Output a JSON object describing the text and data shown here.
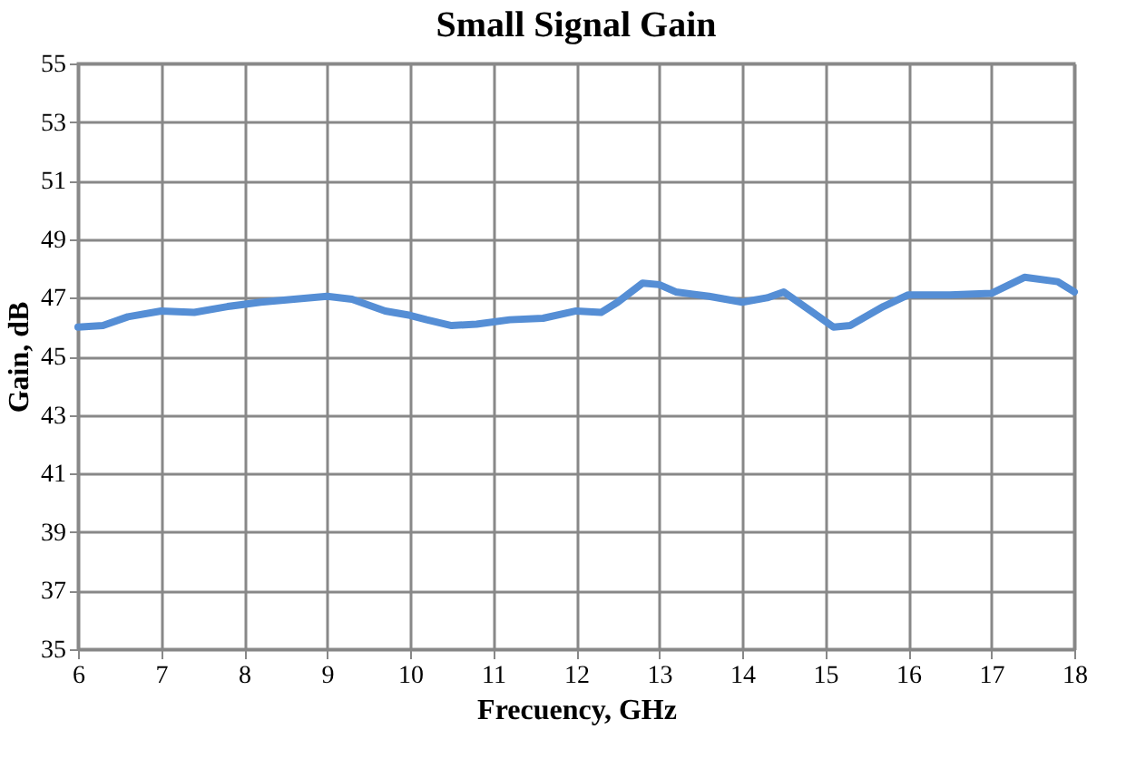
{
  "chart_data": {
    "type": "line",
    "title": "Small Signal Gain",
    "xlabel": "Frecuency, GHz",
    "ylabel": "Gain, dB",
    "x": [
      6.0,
      6.3,
      6.6,
      7.0,
      7.4,
      7.8,
      8.2,
      8.6,
      9.0,
      9.3,
      9.7,
      10.0,
      10.2,
      10.5,
      10.8,
      11.2,
      11.6,
      12.0,
      12.3,
      12.5,
      12.8,
      13.0,
      13.2,
      13.6,
      14.0,
      14.3,
      14.5,
      14.8,
      15.1,
      15.3,
      15.7,
      16.0,
      16.5,
      17.0,
      17.4,
      17.8,
      18.0
    ],
    "series": [
      {
        "color": "#558ed5",
        "values": [
          46.0,
          46.05,
          46.35,
          46.55,
          46.5,
          46.7,
          46.85,
          46.95,
          47.05,
          46.95,
          46.55,
          46.4,
          46.25,
          46.05,
          46.1,
          46.25,
          46.3,
          46.55,
          46.5,
          46.85,
          47.5,
          47.45,
          47.2,
          47.05,
          46.85,
          47.0,
          47.2,
          46.6,
          46.0,
          46.05,
          46.7,
          47.1,
          47.1,
          47.15,
          47.7,
          47.55,
          47.2
        ]
      }
    ],
    "xlim": [
      6,
      18
    ],
    "xticks": [
      6,
      7,
      8,
      9,
      10,
      11,
      12,
      13,
      14,
      15,
      16,
      17,
      18
    ],
    "ylim": [
      35,
      55
    ],
    "yticks": [
      35,
      37,
      39,
      41,
      43,
      45,
      47,
      49,
      51,
      53,
      55
    ],
    "grid": true,
    "legend": false,
    "marker": "none",
    "line_style": "solid"
  }
}
